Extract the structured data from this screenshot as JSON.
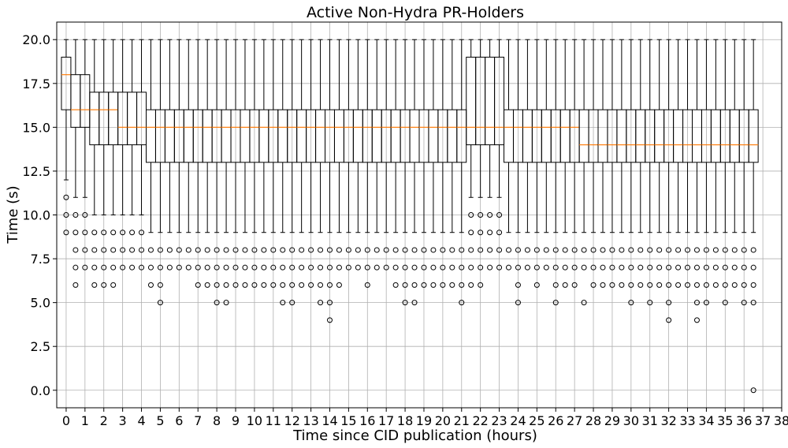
{
  "chart_data": {
    "type": "box",
    "title": "Active Non-Hydra PR-Holders",
    "xlabel": "Time since CID publication (hours)",
    "ylabel": "Time (s)",
    "xlim": [
      -0.5,
      38
    ],
    "ylim": [
      -1,
      21
    ],
    "xticks": [
      "0",
      "1",
      "2",
      "3",
      "4",
      "5",
      "6",
      "7",
      "8",
      "9",
      "10",
      "11",
      "12",
      "13",
      "14",
      "15",
      "16",
      "17",
      "18",
      "19",
      "20",
      "21",
      "22",
      "23",
      "24",
      "25",
      "26",
      "27",
      "28",
      "29",
      "30",
      "31",
      "32",
      "33",
      "34",
      "35",
      "36",
      "37",
      "38"
    ],
    "yticks": [
      "0.0",
      "2.5",
      "5.0",
      "7.5",
      "10.0",
      "12.5",
      "15.0",
      "17.5",
      "20.0"
    ],
    "grid": true,
    "box_width_hours": 0.5,
    "boxes": [
      {
        "x": 0.0,
        "q1": 16,
        "median": 18,
        "q3": 19,
        "whisker_low": 12,
        "whisker_high": 20,
        "outliers": [
          11,
          10,
          9
        ]
      },
      {
        "x": 0.5,
        "q1": 15,
        "median": 16,
        "q3": 18,
        "whisker_low": 11,
        "whisker_high": 20,
        "outliers": [
          10,
          9,
          8,
          7,
          6
        ]
      },
      {
        "x": 1.0,
        "q1": 15,
        "median": 16,
        "q3": 18,
        "whisker_low": 11,
        "whisker_high": 20,
        "outliers": [
          10,
          9,
          8,
          7
        ]
      },
      {
        "x": 1.5,
        "q1": 14,
        "median": 16,
        "q3": 17,
        "whisker_low": 10,
        "whisker_high": 20,
        "outliers": [
          9,
          8,
          7,
          6
        ]
      },
      {
        "x": 2.0,
        "q1": 14,
        "median": 16,
        "q3": 17,
        "whisker_low": 10,
        "whisker_high": 20,
        "outliers": [
          9,
          8,
          7,
          6
        ]
      },
      {
        "x": 2.5,
        "q1": 14,
        "median": 16,
        "q3": 17,
        "whisker_low": 10,
        "whisker_high": 20,
        "outliers": [
          9,
          8,
          7,
          6
        ]
      },
      {
        "x": 3.0,
        "q1": 14,
        "median": 15,
        "q3": 17,
        "whisker_low": 10,
        "whisker_high": 20,
        "outliers": [
          9,
          8,
          7
        ]
      },
      {
        "x": 3.5,
        "q1": 14,
        "median": 15,
        "q3": 17,
        "whisker_low": 10,
        "whisker_high": 20,
        "outliers": [
          9,
          8,
          7
        ]
      },
      {
        "x": 4.0,
        "q1": 14,
        "median": 15,
        "q3": 17,
        "whisker_low": 10,
        "whisker_high": 20,
        "outliers": [
          9,
          8,
          7
        ]
      },
      {
        "x": 4.5,
        "q1": 13,
        "median": 15,
        "q3": 16,
        "whisker_low": 9,
        "whisker_high": 20,
        "outliers": [
          8,
          7,
          6
        ]
      },
      {
        "x": 5.0,
        "q1": 13,
        "median": 15,
        "q3": 16,
        "whisker_low": 9,
        "whisker_high": 20,
        "outliers": [
          8,
          7,
          6,
          5
        ]
      },
      {
        "x": 5.5,
        "q1": 13,
        "median": 15,
        "q3": 16,
        "whisker_low": 9,
        "whisker_high": 20,
        "outliers": [
          8,
          7
        ]
      },
      {
        "x": 6.0,
        "q1": 13,
        "median": 15,
        "q3": 16,
        "whisker_low": 9,
        "whisker_high": 20,
        "outliers": [
          8,
          7
        ]
      },
      {
        "x": 6.5,
        "q1": 13,
        "median": 15,
        "q3": 16,
        "whisker_low": 9,
        "whisker_high": 20,
        "outliers": [
          8,
          7
        ]
      },
      {
        "x": 7.0,
        "q1": 13,
        "median": 15,
        "q3": 16,
        "whisker_low": 9,
        "whisker_high": 20,
        "outliers": [
          8,
          7,
          6
        ]
      },
      {
        "x": 7.5,
        "q1": 13,
        "median": 15,
        "q3": 16,
        "whisker_low": 9,
        "whisker_high": 20,
        "outliers": [
          8,
          7,
          6
        ]
      },
      {
        "x": 8.0,
        "q1": 13,
        "median": 15,
        "q3": 16,
        "whisker_low": 9,
        "whisker_high": 20,
        "outliers": [
          8,
          7,
          6,
          5
        ]
      },
      {
        "x": 8.5,
        "q1": 13,
        "median": 15,
        "q3": 16,
        "whisker_low": 9,
        "whisker_high": 20,
        "outliers": [
          8,
          7,
          6,
          5
        ]
      },
      {
        "x": 9.0,
        "q1": 13,
        "median": 15,
        "q3": 16,
        "whisker_low": 9,
        "whisker_high": 20,
        "outliers": [
          8,
          7,
          6
        ]
      },
      {
        "x": 9.5,
        "q1": 13,
        "median": 15,
        "q3": 16,
        "whisker_low": 9,
        "whisker_high": 20,
        "outliers": [
          8,
          7,
          6
        ]
      },
      {
        "x": 10.0,
        "q1": 13,
        "median": 15,
        "q3": 16,
        "whisker_low": 9,
        "whisker_high": 20,
        "outliers": [
          8,
          7,
          6
        ]
      },
      {
        "x": 10.5,
        "q1": 13,
        "median": 15,
        "q3": 16,
        "whisker_low": 9,
        "whisker_high": 20,
        "outliers": [
          8,
          7,
          6
        ]
      },
      {
        "x": 11.0,
        "q1": 13,
        "median": 15,
        "q3": 16,
        "whisker_low": 9,
        "whisker_high": 20,
        "outliers": [
          8,
          7,
          6
        ]
      },
      {
        "x": 11.5,
        "q1": 13,
        "median": 15,
        "q3": 16,
        "whisker_low": 9,
        "whisker_high": 20,
        "outliers": [
          8,
          7,
          6,
          5
        ]
      },
      {
        "x": 12.0,
        "q1": 13,
        "median": 15,
        "q3": 16,
        "whisker_low": 9,
        "whisker_high": 20,
        "outliers": [
          8,
          7,
          6,
          5
        ]
      },
      {
        "x": 12.5,
        "q1": 13,
        "median": 15,
        "q3": 16,
        "whisker_low": 9,
        "whisker_high": 20,
        "outliers": [
          8,
          7,
          6
        ]
      },
      {
        "x": 13.0,
        "q1": 13,
        "median": 15,
        "q3": 16,
        "whisker_low": 9,
        "whisker_high": 20,
        "outliers": [
          8,
          7,
          6
        ]
      },
      {
        "x": 13.5,
        "q1": 13,
        "median": 15,
        "q3": 16,
        "whisker_low": 9,
        "whisker_high": 20,
        "outliers": [
          8,
          7,
          6,
          5
        ]
      },
      {
        "x": 14.0,
        "q1": 13,
        "median": 15,
        "q3": 16,
        "whisker_low": 9,
        "whisker_high": 20,
        "outliers": [
          8,
          7,
          6,
          5,
          4
        ]
      },
      {
        "x": 14.5,
        "q1": 13,
        "median": 15,
        "q3": 16,
        "whisker_low": 9,
        "whisker_high": 20,
        "outliers": [
          8,
          7,
          6
        ]
      },
      {
        "x": 15.0,
        "q1": 13,
        "median": 15,
        "q3": 16,
        "whisker_low": 9,
        "whisker_high": 20,
        "outliers": [
          8,
          7
        ]
      },
      {
        "x": 15.5,
        "q1": 13,
        "median": 15,
        "q3": 16,
        "whisker_low": 9,
        "whisker_high": 20,
        "outliers": [
          8,
          7
        ]
      },
      {
        "x": 16.0,
        "q1": 13,
        "median": 15,
        "q3": 16,
        "whisker_low": 9,
        "whisker_high": 20,
        "outliers": [
          8,
          7,
          6
        ]
      },
      {
        "x": 16.5,
        "q1": 13,
        "median": 15,
        "q3": 16,
        "whisker_low": 9,
        "whisker_high": 20,
        "outliers": [
          8,
          7
        ]
      },
      {
        "x": 17.0,
        "q1": 13,
        "median": 15,
        "q3": 16,
        "whisker_low": 9,
        "whisker_high": 20,
        "outliers": [
          8,
          7
        ]
      },
      {
        "x": 17.5,
        "q1": 13,
        "median": 15,
        "q3": 16,
        "whisker_low": 9,
        "whisker_high": 20,
        "outliers": [
          8,
          7,
          6
        ]
      },
      {
        "x": 18.0,
        "q1": 13,
        "median": 15,
        "q3": 16,
        "whisker_low": 9,
        "whisker_high": 20,
        "outliers": [
          8,
          7,
          6,
          5
        ]
      },
      {
        "x": 18.5,
        "q1": 13,
        "median": 15,
        "q3": 16,
        "whisker_low": 9,
        "whisker_high": 20,
        "outliers": [
          8,
          7,
          6,
          5
        ]
      },
      {
        "x": 19.0,
        "q1": 13,
        "median": 15,
        "q3": 16,
        "whisker_low": 9,
        "whisker_high": 20,
        "outliers": [
          8,
          7,
          6
        ]
      },
      {
        "x": 19.5,
        "q1": 13,
        "median": 15,
        "q3": 16,
        "whisker_low": 9,
        "whisker_high": 20,
        "outliers": [
          8,
          7,
          6
        ]
      },
      {
        "x": 20.0,
        "q1": 13,
        "median": 15,
        "q3": 16,
        "whisker_low": 9,
        "whisker_high": 20,
        "outliers": [
          8,
          7,
          6
        ]
      },
      {
        "x": 20.5,
        "q1": 13,
        "median": 15,
        "q3": 16,
        "whisker_low": 9,
        "whisker_high": 20,
        "outliers": [
          8,
          7,
          6
        ]
      },
      {
        "x": 21.0,
        "q1": 13,
        "median": 15,
        "q3": 16,
        "whisker_low": 9,
        "whisker_high": 20,
        "outliers": [
          8,
          7,
          6,
          5
        ]
      },
      {
        "x": 21.5,
        "q1": 14,
        "median": 15,
        "q3": 19,
        "whisker_low": 11,
        "whisker_high": 20,
        "outliers": [
          10,
          9,
          8,
          7,
          6
        ]
      },
      {
        "x": 22.0,
        "q1": 14,
        "median": 15,
        "q3": 19,
        "whisker_low": 11,
        "whisker_high": 20,
        "outliers": [
          10,
          9,
          8,
          7,
          6
        ]
      },
      {
        "x": 22.5,
        "q1": 14,
        "median": 15,
        "q3": 19,
        "whisker_low": 11,
        "whisker_high": 20,
        "outliers": [
          10,
          9,
          8,
          7
        ]
      },
      {
        "x": 23.0,
        "q1": 14,
        "median": 15,
        "q3": 19,
        "whisker_low": 11,
        "whisker_high": 20,
        "outliers": [
          10,
          9,
          8,
          7
        ]
      },
      {
        "x": 23.5,
        "q1": 13,
        "median": 15,
        "q3": 16,
        "whisker_low": 9,
        "whisker_high": 20,
        "outliers": [
          8,
          7
        ]
      },
      {
        "x": 24.0,
        "q1": 13,
        "median": 15,
        "q3": 16,
        "whisker_low": 9,
        "whisker_high": 20,
        "outliers": [
          8,
          7,
          6,
          5
        ]
      },
      {
        "x": 24.5,
        "q1": 13,
        "median": 15,
        "q3": 16,
        "whisker_low": 9,
        "whisker_high": 20,
        "outliers": [
          8,
          7
        ]
      },
      {
        "x": 25.0,
        "q1": 13,
        "median": 15,
        "q3": 16,
        "whisker_low": 9,
        "whisker_high": 20,
        "outliers": [
          8,
          7,
          6
        ]
      },
      {
        "x": 25.5,
        "q1": 13,
        "median": 15,
        "q3": 16,
        "whisker_low": 9,
        "whisker_high": 20,
        "outliers": [
          8,
          7
        ]
      },
      {
        "x": 26.0,
        "q1": 13,
        "median": 15,
        "q3": 16,
        "whisker_low": 9,
        "whisker_high": 20,
        "outliers": [
          8,
          7,
          6,
          5
        ]
      },
      {
        "x": 26.5,
        "q1": 13,
        "median": 15,
        "q3": 16,
        "whisker_low": 9,
        "whisker_high": 20,
        "outliers": [
          8,
          7,
          6
        ]
      },
      {
        "x": 27.0,
        "q1": 13,
        "median": 15,
        "q3": 16,
        "whisker_low": 9,
        "whisker_high": 20,
        "outliers": [
          8,
          7,
          6
        ]
      },
      {
        "x": 27.5,
        "q1": 13,
        "median": 14,
        "q3": 16,
        "whisker_low": 9,
        "whisker_high": 20,
        "outliers": [
          8,
          7,
          5
        ]
      },
      {
        "x": 28.0,
        "q1": 13,
        "median": 14,
        "q3": 16,
        "whisker_low": 9,
        "whisker_high": 20,
        "outliers": [
          8,
          7,
          6
        ]
      },
      {
        "x": 28.5,
        "q1": 13,
        "median": 14,
        "q3": 16,
        "whisker_low": 9,
        "whisker_high": 20,
        "outliers": [
          8,
          7,
          6
        ]
      },
      {
        "x": 29.0,
        "q1": 13,
        "median": 14,
        "q3": 16,
        "whisker_low": 9,
        "whisker_high": 20,
        "outliers": [
          8,
          7,
          6
        ]
      },
      {
        "x": 29.5,
        "q1": 13,
        "median": 14,
        "q3": 16,
        "whisker_low": 9,
        "whisker_high": 20,
        "outliers": [
          8,
          7,
          6
        ]
      },
      {
        "x": 30.0,
        "q1": 13,
        "median": 14,
        "q3": 16,
        "whisker_low": 9,
        "whisker_high": 20,
        "outliers": [
          8,
          7,
          6,
          5
        ]
      },
      {
        "x": 30.5,
        "q1": 13,
        "median": 14,
        "q3": 16,
        "whisker_low": 9,
        "whisker_high": 20,
        "outliers": [
          8,
          7,
          6
        ]
      },
      {
        "x": 31.0,
        "q1": 13,
        "median": 14,
        "q3": 16,
        "whisker_low": 9,
        "whisker_high": 20,
        "outliers": [
          8,
          7,
          6,
          5
        ]
      },
      {
        "x": 31.5,
        "q1": 13,
        "median": 14,
        "q3": 16,
        "whisker_low": 9,
        "whisker_high": 20,
        "outliers": [
          8,
          7,
          6
        ]
      },
      {
        "x": 32.0,
        "q1": 13,
        "median": 14,
        "q3": 16,
        "whisker_low": 9,
        "whisker_high": 20,
        "outliers": [
          8,
          7,
          6,
          5,
          4
        ]
      },
      {
        "x": 32.5,
        "q1": 13,
        "median": 14,
        "q3": 16,
        "whisker_low": 9,
        "whisker_high": 20,
        "outliers": [
          8,
          7,
          6
        ]
      },
      {
        "x": 33.0,
        "q1": 13,
        "median": 14,
        "q3": 16,
        "whisker_low": 9,
        "whisker_high": 20,
        "outliers": [
          8,
          7,
          6
        ]
      },
      {
        "x": 33.5,
        "q1": 13,
        "median": 14,
        "q3": 16,
        "whisker_low": 9,
        "whisker_high": 20,
        "outliers": [
          8,
          7,
          6,
          5,
          4
        ]
      },
      {
        "x": 34.0,
        "q1": 13,
        "median": 14,
        "q3": 16,
        "whisker_low": 9,
        "whisker_high": 20,
        "outliers": [
          8,
          7,
          6,
          5
        ]
      },
      {
        "x": 34.5,
        "q1": 13,
        "median": 14,
        "q3": 16,
        "whisker_low": 9,
        "whisker_high": 20,
        "outliers": [
          8,
          7,
          6
        ]
      },
      {
        "x": 35.0,
        "q1": 13,
        "median": 14,
        "q3": 16,
        "whisker_low": 9,
        "whisker_high": 20,
        "outliers": [
          8,
          7,
          6,
          5
        ]
      },
      {
        "x": 35.5,
        "q1": 13,
        "median": 14,
        "q3": 16,
        "whisker_low": 9,
        "whisker_high": 20,
        "outliers": [
          8,
          7,
          6
        ]
      },
      {
        "x": 36.0,
        "q1": 13,
        "median": 14,
        "q3": 16,
        "whisker_low": 9,
        "whisker_high": 20,
        "outliers": [
          8,
          7,
          6,
          5
        ]
      },
      {
        "x": 36.5,
        "q1": 13,
        "median": 14,
        "q3": 16,
        "whisker_low": 9,
        "whisker_high": 20,
        "outliers": [
          8,
          7,
          6,
          5,
          0
        ]
      }
    ],
    "colors": {
      "box": "#000000",
      "median": "#ff7f0e",
      "grid": "#b0b0b0",
      "axes": "#000000"
    }
  }
}
